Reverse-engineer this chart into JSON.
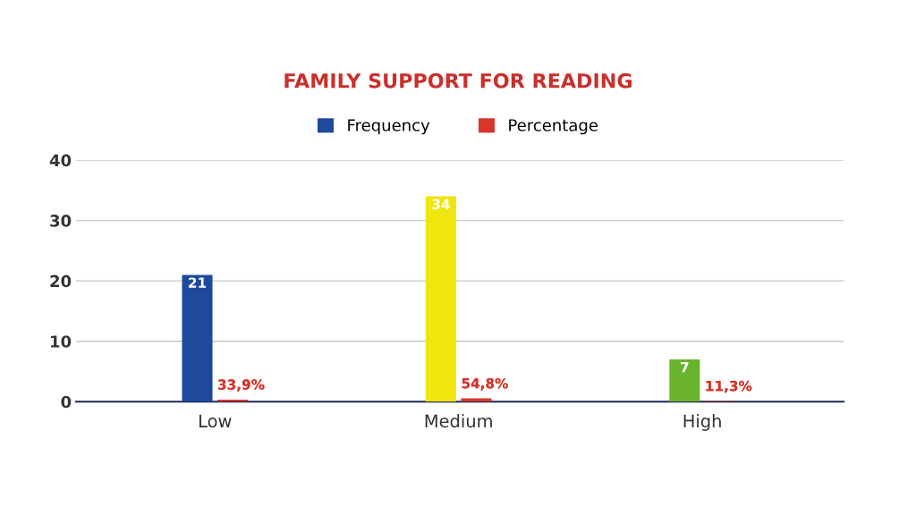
{
  "chart_data": {
    "type": "bar",
    "title": "FAMILY SUPPORT FOR READING",
    "categories": [
      "Low",
      "Medium",
      "High"
    ],
    "series": [
      {
        "name": "Frequency",
        "colors": [
          "#1f4a9c",
          "#f0e60f",
          "#6ab42d"
        ],
        "values": [
          21,
          34,
          7
        ],
        "value_labels": [
          "21",
          "34",
          "7"
        ]
      },
      {
        "name": "Percentage",
        "color": "#d8352b",
        "values": [
          0.339,
          0.548,
          0.113
        ],
        "value_labels": [
          "33,9%",
          "54,8%",
          "11,3%"
        ]
      }
    ],
    "ylim": [
      0,
      40
    ],
    "yticks": [
      0,
      10,
      20,
      30,
      40
    ],
    "grid": "y",
    "legend": "top"
  }
}
